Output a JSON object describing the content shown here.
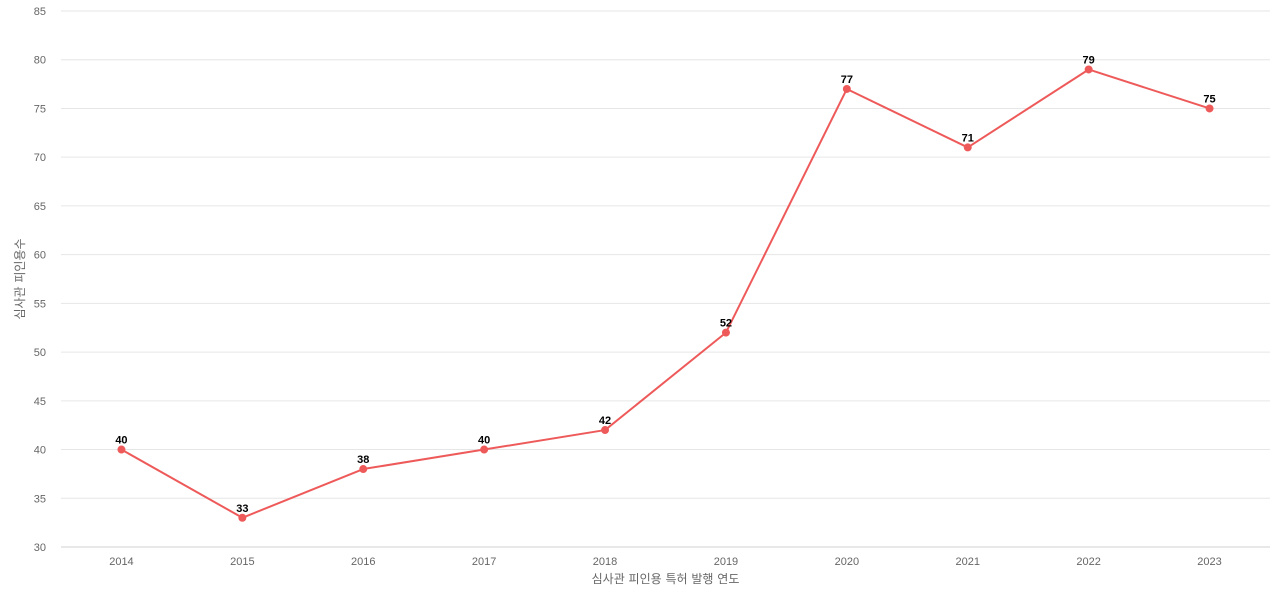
{
  "chart_data": {
    "type": "line",
    "title": "",
    "xlabel": "심사관 피인용 특허 발행 연도",
    "ylabel": "심사관 피인용수",
    "categories": [
      "2014",
      "2015",
      "2016",
      "2017",
      "2018",
      "2019",
      "2020",
      "2021",
      "2022",
      "2023"
    ],
    "series": [
      {
        "values": [
          40,
          33,
          38,
          40,
          42,
          52,
          77,
          71,
          79,
          75
        ],
        "color": "#ee5a5a"
      }
    ],
    "ylim": [
      30,
      85
    ],
    "yticks": [
      30,
      35,
      40,
      45,
      50,
      55,
      60,
      65,
      70,
      75,
      80,
      85
    ],
    "grid": true,
    "data_labels": true
  }
}
